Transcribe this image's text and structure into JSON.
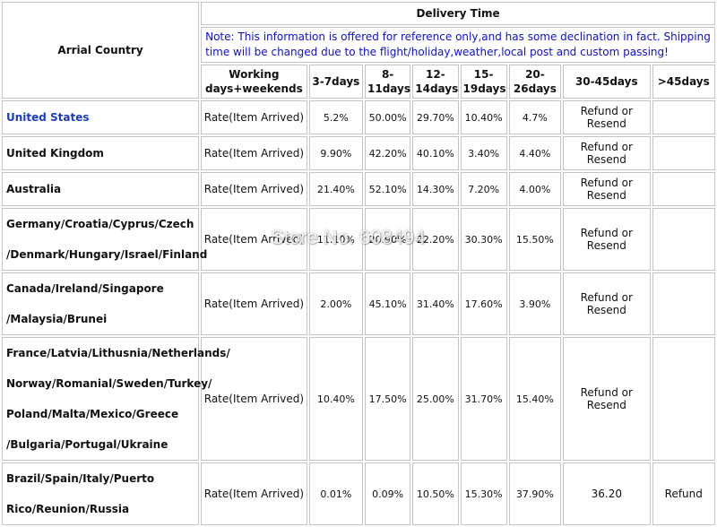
{
  "table": {
    "country_header": "Arrial Country",
    "delivery_header": "Delivery Time",
    "note": "Note: This information is offered for reference only,and has some declination in fact. Shipping time will be changed due to the flight/holiday,weather,local post and custom passing!",
    "columns": {
      "working": [
        "Working",
        "days+weekends"
      ],
      "c1": "3-7days",
      "c2": [
        "8-",
        "11days"
      ],
      "c3": [
        "12-",
        "14days"
      ],
      "c4": [
        "15-",
        "19days"
      ],
      "c5": [
        "20-",
        "26days"
      ],
      "c6": "30-45days",
      "c7": ">45days"
    },
    "rows": [
      {
        "country": [
          "United States"
        ],
        "rate": "Rate(Item Arrived)",
        "v": [
          "5.2%",
          "50.00%",
          "29.70%",
          "10.40%",
          "4.7%",
          "Refund or Resend",
          ""
        ]
      },
      {
        "country": [
          "United Kingdom"
        ],
        "rate": "Rate(Item Arrived)",
        "v": [
          "9.90%",
          "42.20%",
          "40.10%",
          "3.40%",
          "4.40%",
          "Refund or Resend",
          ""
        ]
      },
      {
        "country": [
          "Australia"
        ],
        "rate": "Rate(Item Arrived)",
        "v": [
          "21.40%",
          "52.10%",
          "14.30%",
          "7.20%",
          "4.00%",
          "Refund or Resend",
          ""
        ]
      },
      {
        "country": [
          "Germany/Croatia/Cyprus/Czech",
          "/Denmark/Hungary/Israel/Finland"
        ],
        "rate": "Rate(Item Arrived)",
        "v": [
          "11.10%",
          "20.90%",
          "22.20%",
          "30.30%",
          "15.50%",
          "Refund or Resend",
          ""
        ]
      },
      {
        "country": [
          "Canada/Ireland/Singapore",
          "/Malaysia/Brunei"
        ],
        "rate": "Rate(Item Arrived)",
        "v": [
          "2.00%",
          "45.10%",
          "31.40%",
          "17.60%",
          "3.90%",
          "Refund or Resend",
          ""
        ]
      },
      {
        "country": [
          "France/Latvia/Lithusnia/Netherlands/",
          "Norway/Romanial/Sweden/Turkey/",
          "Poland/Malta/Mexico/Greece",
          "/Bulgaria/Portugal/Ukraine"
        ],
        "rate": "Rate(Item Arrived)",
        "v": [
          "10.40%",
          "17.50%",
          "25.00%",
          "31.70%",
          "15.40%",
          "Refund or Resend",
          ""
        ]
      },
      {
        "country": [
          "Brazil/Spain/Italy/Puerto",
          " Rico/Reunion/Russia"
        ],
        "rate": "Rate(Item Arrived)",
        "v": [
          "0.01%",
          "0.09%",
          "10.50%",
          "15.30%",
          "37.90%",
          "36.20",
          "Refund"
        ]
      }
    ]
  },
  "watermark": "Store No. 608494"
}
